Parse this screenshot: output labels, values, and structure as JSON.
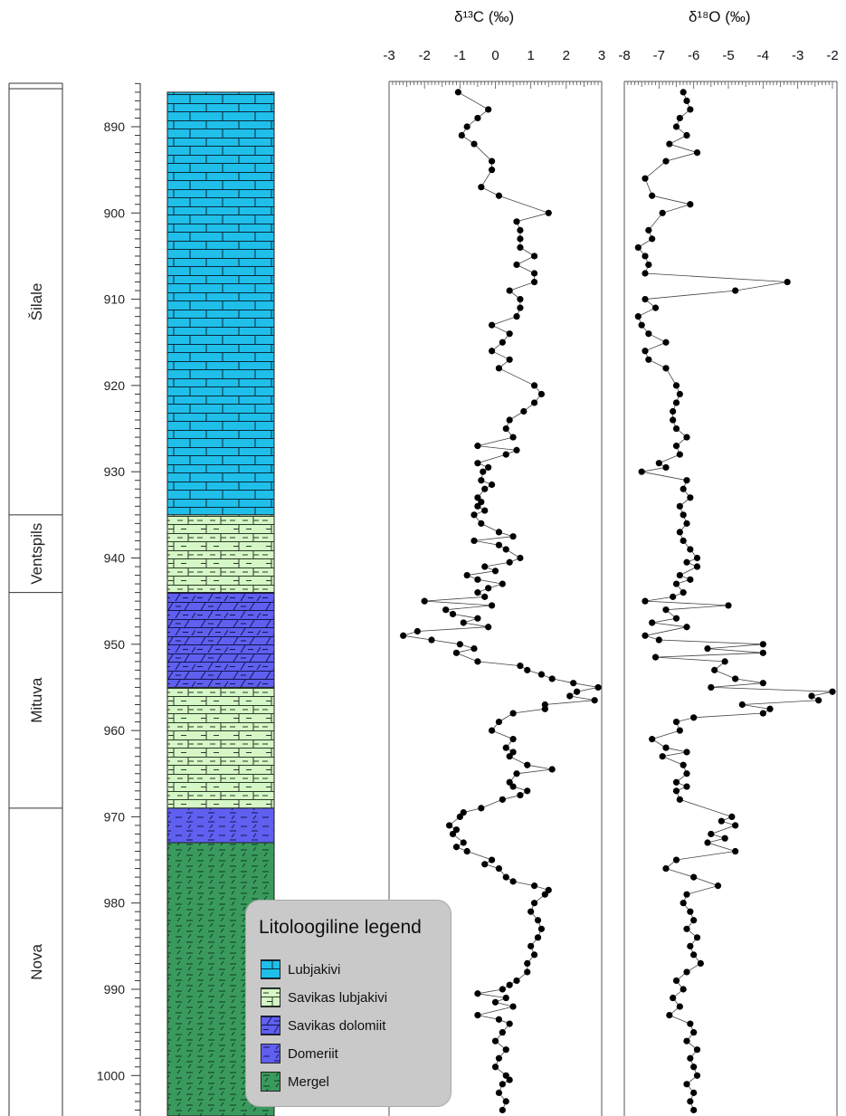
{
  "chart_data": [
    {
      "type": "lithology-column",
      "depth_axis": {
        "ticks": [
          890,
          900,
          910,
          920,
          930,
          940,
          950,
          960,
          970,
          980,
          990,
          1000
        ],
        "range": [
          885,
          1005
        ]
      },
      "formations": [
        {
          "name": "Šilale",
          "top": 885,
          "bottom": 935
        },
        {
          "name": "Ventspils",
          "top": 935,
          "bottom": 944
        },
        {
          "name": "Mituva",
          "top": 944,
          "bottom": 969
        },
        {
          "name": "Nova",
          "top": 969,
          "bottom": 1005
        }
      ],
      "units": [
        {
          "lithology": "Lubjakivi",
          "top": 886,
          "bottom": 935
        },
        {
          "lithology": "Savikas lubjakivi",
          "top": 935,
          "bottom": 944
        },
        {
          "lithology": "Savikas dolomiit",
          "top": 944,
          "bottom": 955
        },
        {
          "lithology": "Savikas lubjakivi",
          "top": 955,
          "bottom": 969
        },
        {
          "lithology": "Domeriit",
          "top": 969,
          "bottom": 973
        },
        {
          "lithology": "Mergel",
          "top": 973,
          "bottom": 1005
        }
      ]
    },
    {
      "type": "line",
      "title": "δ¹³C (‰)",
      "xlim": [
        -3,
        3
      ],
      "x_ticks": [
        -3,
        -2,
        -1,
        0,
        1,
        2,
        3
      ],
      "points": [
        [
          -1.05,
          886
        ],
        [
          -0.2,
          888
        ],
        [
          -0.5,
          889
        ],
        [
          -0.8,
          890
        ],
        [
          -0.95,
          891
        ],
        [
          -0.6,
          892
        ],
        [
          -0.1,
          894
        ],
        [
          -0.1,
          895
        ],
        [
          -0.4,
          897
        ],
        [
          0.1,
          898
        ],
        [
          1.5,
          900
        ],
        [
          0.6,
          901
        ],
        [
          0.7,
          902
        ],
        [
          0.7,
          903
        ],
        [
          0.7,
          904
        ],
        [
          1.1,
          905
        ],
        [
          0.6,
          906
        ],
        [
          1.1,
          907
        ],
        [
          1.1,
          908
        ],
        [
          0.4,
          909
        ],
        [
          0.7,
          910
        ],
        [
          0.7,
          911
        ],
        [
          0.6,
          912
        ],
        [
          -0.1,
          913
        ],
        [
          0.4,
          914
        ],
        [
          0.2,
          915
        ],
        [
          -0.1,
          916
        ],
        [
          0.4,
          917
        ],
        [
          0.1,
          918
        ],
        [
          1.1,
          920
        ],
        [
          1.3,
          921
        ],
        [
          1.1,
          922
        ],
        [
          0.8,
          923
        ],
        [
          0.4,
          924
        ],
        [
          0.3,
          925
        ],
        [
          0.5,
          926
        ],
        [
          -0.5,
          927
        ],
        [
          0.6,
          927.5
        ],
        [
          0.3,
          928
        ],
        [
          -0.5,
          929
        ],
        [
          -0.2,
          929.5
        ],
        [
          -0.35,
          930
        ],
        [
          -0.4,
          931
        ],
        [
          -0.1,
          931.5
        ],
        [
          -0.3,
          932
        ],
        [
          -0.5,
          933
        ],
        [
          -0.4,
          933.5
        ],
        [
          -0.5,
          934
        ],
        [
          -0.3,
          934.5
        ],
        [
          -0.6,
          935
        ],
        [
          -0.4,
          936
        ],
        [
          0.1,
          937
        ],
        [
          0.5,
          937.5
        ],
        [
          -0.6,
          938
        ],
        [
          0.1,
          938.5
        ],
        [
          0.3,
          939
        ],
        [
          0.7,
          940
        ],
        [
          0.4,
          940.5
        ],
        [
          -0.3,
          941
        ],
        [
          0.0,
          941.5
        ],
        [
          -0.8,
          942
        ],
        [
          -0.5,
          942.5
        ],
        [
          0.2,
          943
        ],
        [
          -0.2,
          943.5
        ],
        [
          -0.5,
          944
        ],
        [
          -0.3,
          944.5
        ],
        [
          -2.0,
          945
        ],
        [
          -0.1,
          945.5
        ],
        [
          -1.4,
          946
        ],
        [
          -1.2,
          946.5
        ],
        [
          -0.5,
          947
        ],
        [
          -0.9,
          947.5
        ],
        [
          -0.2,
          948
        ],
        [
          -2.2,
          948.5
        ],
        [
          -2.6,
          949
        ],
        [
          -1.8,
          949.5
        ],
        [
          -1.0,
          950
        ],
        [
          -0.6,
          950.5
        ],
        [
          -1.1,
          951
        ],
        [
          -0.5,
          952
        ],
        [
          0.7,
          952.5
        ],
        [
          0.9,
          953
        ],
        [
          1.3,
          953.5
        ],
        [
          1.6,
          954
        ],
        [
          2.2,
          954.5
        ],
        [
          2.9,
          955
        ],
        [
          2.3,
          955.5
        ],
        [
          2.1,
          956
        ],
        [
          2.8,
          956.5
        ],
        [
          1.4,
          957
        ],
        [
          1.4,
          957.5
        ],
        [
          0.5,
          958
        ],
        [
          0.1,
          959
        ],
        [
          -0.1,
          960
        ],
        [
          0.5,
          961
        ],
        [
          0.3,
          962
        ],
        [
          0.5,
          962.5
        ],
        [
          0.4,
          963
        ],
        [
          0.9,
          964
        ],
        [
          1.6,
          964.5
        ],
        [
          0.6,
          965
        ],
        [
          0.4,
          966
        ],
        [
          0.5,
          966.5
        ],
        [
          0.9,
          967
        ],
        [
          0.7,
          967.5
        ],
        [
          0.2,
          968
        ],
        [
          -0.4,
          969
        ],
        [
          -0.9,
          969.5
        ],
        [
          -1.0,
          970
        ],
        [
          -1.3,
          971
        ],
        [
          -1.1,
          971.5
        ],
        [
          -1.2,
          972
        ],
        [
          -0.9,
          973
        ],
        [
          -1.1,
          973.5
        ],
        [
          -0.8,
          974
        ],
        [
          -0.1,
          975
        ],
        [
          -0.3,
          975.5
        ],
        [
          0.1,
          976
        ],
        [
          0.3,
          977
        ],
        [
          0.5,
          977.5
        ],
        [
          1.1,
          978
        ],
        [
          1.5,
          978.5
        ],
        [
          1.4,
          979
        ],
        [
          1.1,
          980
        ],
        [
          1.0,
          981
        ],
        [
          1.2,
          982
        ],
        [
          1.3,
          983
        ],
        [
          1.2,
          984
        ],
        [
          1.0,
          985
        ],
        [
          1.1,
          986
        ],
        [
          0.9,
          987
        ],
        [
          0.9,
          988
        ],
        [
          0.6,
          989
        ],
        [
          0.4,
          989.5
        ],
        [
          0.2,
          990
        ],
        [
          -0.5,
          990.5
        ],
        [
          0.3,
          991
        ],
        [
          0.0,
          991.5
        ],
        [
          0.5,
          992
        ],
        [
          -0.5,
          993
        ],
        [
          0.1,
          993.5
        ],
        [
          0.4,
          994
        ],
        [
          0.2,
          995
        ],
        [
          0.0,
          996
        ],
        [
          0.3,
          997
        ],
        [
          0.1,
          998
        ],
        [
          0.0,
          999
        ],
        [
          0.3,
          1000
        ],
        [
          0.4,
          1000.5
        ],
        [
          0.2,
          1001
        ],
        [
          0.1,
          1002
        ],
        [
          0.3,
          1003
        ],
        [
          0.2,
          1004
        ]
      ]
    },
    {
      "type": "line",
      "title": "δ¹⁸O (‰)",
      "xlim": [
        -8,
        -2
      ],
      "x_ticks": [
        -8,
        -7,
        -6,
        -5,
        -4,
        -3,
        -2
      ],
      "points": [
        [
          -6.3,
          886
        ],
        [
          -6.2,
          887
        ],
        [
          -6.1,
          888
        ],
        [
          -6.4,
          889
        ],
        [
          -6.5,
          890
        ],
        [
          -6.2,
          891
        ],
        [
          -6.7,
          892
        ],
        [
          -5.9,
          893
        ],
        [
          -6.8,
          894
        ],
        [
          -7.4,
          896
        ],
        [
          -7.2,
          898
        ],
        [
          -6.1,
          899
        ],
        [
          -6.9,
          900
        ],
        [
          -7.3,
          902
        ],
        [
          -7.2,
          903
        ],
        [
          -7.6,
          904
        ],
        [
          -7.4,
          905
        ],
        [
          -7.3,
          906
        ],
        [
          -7.4,
          907
        ],
        [
          -3.3,
          908
        ],
        [
          -4.8,
          909
        ],
        [
          -7.4,
          910
        ],
        [
          -7.1,
          911
        ],
        [
          -7.6,
          912
        ],
        [
          -7.5,
          913
        ],
        [
          -7.3,
          914
        ],
        [
          -6.8,
          915
        ],
        [
          -7.4,
          916
        ],
        [
          -7.3,
          917
        ],
        [
          -6.8,
          918
        ],
        [
          -6.5,
          920
        ],
        [
          -6.4,
          921
        ],
        [
          -6.5,
          922
        ],
        [
          -6.6,
          923
        ],
        [
          -6.6,
          924
        ],
        [
          -6.5,
          925
        ],
        [
          -6.2,
          926
        ],
        [
          -6.5,
          927
        ],
        [
          -6.4,
          928
        ],
        [
          -7.0,
          929
        ],
        [
          -6.8,
          929.5
        ],
        [
          -7.5,
          930
        ],
        [
          -6.2,
          931
        ],
        [
          -6.3,
          932
        ],
        [
          -6.1,
          933
        ],
        [
          -6.4,
          934
        ],
        [
          -6.3,
          935
        ],
        [
          -6.2,
          936
        ],
        [
          -6.4,
          937
        ],
        [
          -6.3,
          938
        ],
        [
          -6.1,
          939
        ],
        [
          -5.9,
          940
        ],
        [
          -6.2,
          940.5
        ],
        [
          -5.9,
          941
        ],
        [
          -6.4,
          942
        ],
        [
          -6.1,
          942.5
        ],
        [
          -6.5,
          943
        ],
        [
          -6.3,
          944
        ],
        [
          -6.6,
          944.5
        ],
        [
          -7.4,
          945
        ],
        [
          -5.0,
          945.5
        ],
        [
          -6.8,
          946
        ],
        [
          -6.5,
          947
        ],
        [
          -7.2,
          947.5
        ],
        [
          -6.2,
          948
        ],
        [
          -7.4,
          949
        ],
        [
          -7.0,
          949.5
        ],
        [
          -4.0,
          950
        ],
        [
          -5.6,
          950.5
        ],
        [
          -4.0,
          951
        ],
        [
          -7.1,
          951.5
        ],
        [
          -5.1,
          952
        ],
        [
          -5.4,
          953
        ],
        [
          -4.8,
          954
        ],
        [
          -4.0,
          954.5
        ],
        [
          -5.5,
          955
        ],
        [
          -2.0,
          955.5
        ],
        [
          -2.6,
          956
        ],
        [
          -2.4,
          956.5
        ],
        [
          -4.6,
          957
        ],
        [
          -3.8,
          957.5
        ],
        [
          -4.0,
          958
        ],
        [
          -6.0,
          958.5
        ],
        [
          -6.5,
          959
        ],
        [
          -6.4,
          960
        ],
        [
          -7.2,
          961
        ],
        [
          -6.8,
          962
        ],
        [
          -6.2,
          962.5
        ],
        [
          -6.9,
          963
        ],
        [
          -6.3,
          964
        ],
        [
          -6.2,
          965
        ],
        [
          -6.5,
          966
        ],
        [
          -6.2,
          966.5
        ],
        [
          -6.5,
          967
        ],
        [
          -6.4,
          968
        ],
        [
          -4.9,
          970
        ],
        [
          -5.2,
          970.5
        ],
        [
          -4.8,
          971
        ],
        [
          -5.5,
          972
        ],
        [
          -5.1,
          972.5
        ],
        [
          -5.6,
          973
        ],
        [
          -4.8,
          974
        ],
        [
          -6.5,
          975
        ],
        [
          -6.8,
          976
        ],
        [
          -6.0,
          977
        ],
        [
          -5.3,
          978
        ],
        [
          -6.2,
          979
        ],
        [
          -6.3,
          980
        ],
        [
          -6.1,
          981
        ],
        [
          -6.0,
          982
        ],
        [
          -6.2,
          983
        ],
        [
          -5.9,
          984
        ],
        [
          -6.1,
          985
        ],
        [
          -6.0,
          986
        ],
        [
          -5.8,
          987
        ],
        [
          -6.2,
          988
        ],
        [
          -6.5,
          989
        ],
        [
          -6.3,
          990
        ],
        [
          -6.6,
          991
        ],
        [
          -6.4,
          992
        ],
        [
          -6.7,
          993
        ],
        [
          -6.1,
          994
        ],
        [
          -6.0,
          995
        ],
        [
          -6.2,
          996
        ],
        [
          -5.9,
          997
        ],
        [
          -6.1,
          998
        ],
        [
          -6.0,
          999
        ],
        [
          -5.9,
          1000
        ],
        [
          -6.2,
          1001
        ],
        [
          -6.0,
          1002
        ],
        [
          -6.1,
          1003
        ],
        [
          -6.0,
          1004
        ]
      ]
    }
  ],
  "legend": {
    "title": "Litoloogiline legend",
    "items": [
      {
        "label": "Lubjakivi",
        "pattern": "brick",
        "color": "#1fbfea"
      },
      {
        "label": "Savikas lubjakivi",
        "pattern": "brick-dash",
        "color": "#d5f7c5"
      },
      {
        "label": "Savikas dolomiit",
        "pattern": "dolomite",
        "color": "#5f5ff0"
      },
      {
        "label": "Domeriit",
        "pattern": "dash",
        "color": "#5f5ff0"
      },
      {
        "label": "Mergel",
        "pattern": "marl",
        "color": "#3a9a5e"
      }
    ]
  },
  "colors": {
    "lubjakivi": "#1fbfea",
    "savikas_lubjakivi": "#d5f7c5",
    "dolomiit": "#5f5ff0",
    "mergel": "#3a9a5e",
    "legend_bg": "#c9c9c9",
    "markers": "#000000"
  }
}
